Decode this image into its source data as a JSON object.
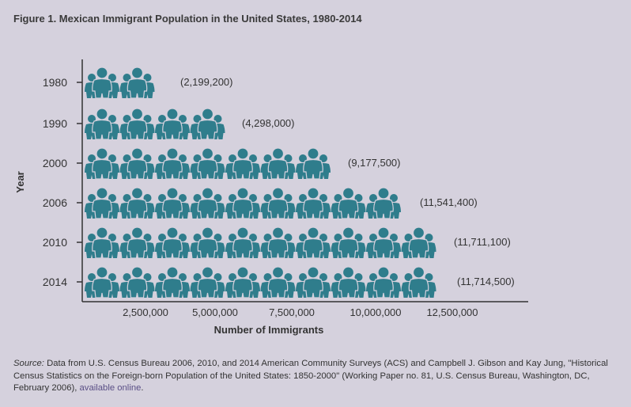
{
  "title": "Figure 1. Mexican Immigrant Population in the United States, 1980-2014",
  "chart_data": {
    "type": "bar",
    "style": "pictograph",
    "orientation": "horizontal",
    "categories": [
      "1980",
      "1990",
      "2000",
      "2006",
      "2010",
      "2014"
    ],
    "values": [
      2199200,
      4298000,
      9177500,
      11541400,
      11711100,
      11714500
    ],
    "value_labels": [
      "(2,199,200)",
      "(4,298,000)",
      "(9,177,500)",
      "(11,541,400)",
      "(11,711,100)",
      "(11,714,500)"
    ],
    "icon_groups": [
      2,
      4,
      7,
      9,
      10,
      10
    ],
    "xlabel": "Number of Immigrants",
    "ylabel": "Year",
    "xticks": [
      "2,500,000",
      "5,000,000",
      "7,500,000",
      "10,000,000",
      "12,500,000"
    ],
    "icon": "family-people-icon",
    "icon_color": "#2f7d8c",
    "grid": false
  },
  "source": {
    "label": "Source:",
    "text": " Data from U.S. Census Bureau 2006, 2010, and 2014 American Community Surveys (ACS) and Campbell J. Gibson and Kay Jung, \"Historical Census Statistics on the Foreign-born Population of the United States: 1850-2000\" (Working Paper no. 81, U.S. Census Bureau, Washington, DC, February 2006), ",
    "link": "available online",
    "end": "."
  }
}
